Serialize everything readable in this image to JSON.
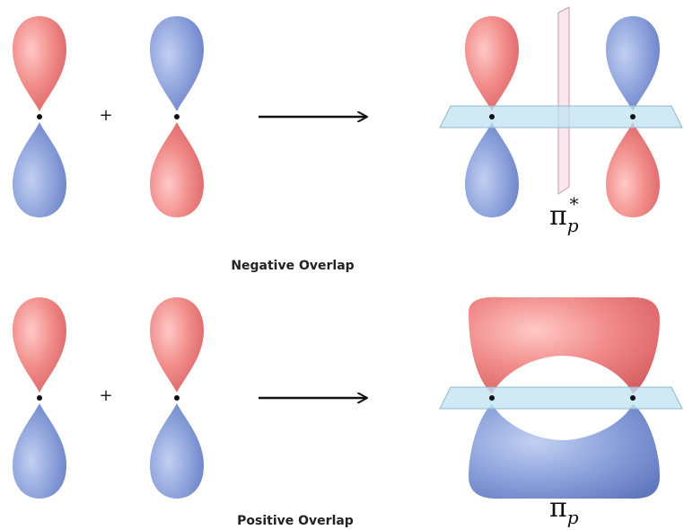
{
  "operators": [
    "+",
    "+"
  ],
  "captions": {
    "negative": "Negative Overlap",
    "positive": "Positive Overlap"
  },
  "results": {
    "antibonding": {
      "symbol": "π",
      "subscript": "p",
      "superscript": "*"
    },
    "bonding": {
      "symbol": "π",
      "subscript": "p"
    }
  }
}
